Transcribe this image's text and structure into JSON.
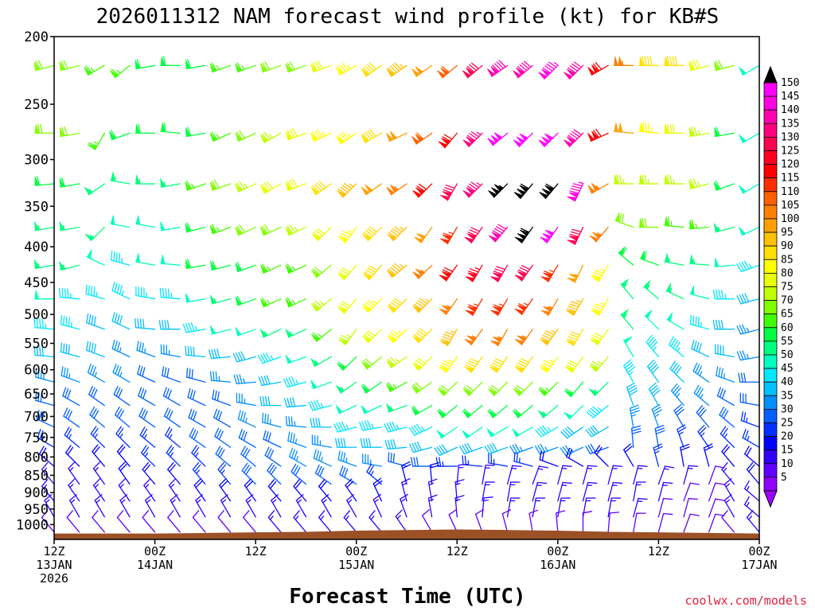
{
  "chart_data": {
    "type": "wind_barb_profile",
    "title": "2026011312 NAM forecast wind profile (kt) for KB#S",
    "xlabel": "Forecast Time (UTC)",
    "ylabel": "",
    "credit": "coolwx.com/models",
    "y_axis": {
      "scale": "log_pressure",
      "range_hpa": [
        1050,
        200
      ],
      "ticks": [
        {
          "value": 200,
          "label": "200"
        },
        {
          "value": 250,
          "label": "250"
        },
        {
          "value": 300,
          "label": "300"
        },
        {
          "value": 350,
          "label": "350"
        },
        {
          "value": 400,
          "label": "400"
        },
        {
          "value": 450,
          "label": "450"
        },
        {
          "value": 500,
          "label": "500"
        },
        {
          "value": 550,
          "label": "550"
        },
        {
          "value": 600,
          "label": "600"
        },
        {
          "value": 650,
          "label": "650"
        },
        {
          "value": 700,
          "label": "700"
        },
        {
          "value": 750,
          "label": "750"
        },
        {
          "value": 800,
          "label": "800"
        },
        {
          "value": 850,
          "label": "850"
        },
        {
          "value": 900,
          "label": "900"
        },
        {
          "value": 950,
          "label": "950"
        },
        {
          "value": 1000,
          "label": "1000"
        }
      ]
    },
    "x_axis": {
      "range_hours": [
        0,
        84
      ],
      "ticks": [
        {
          "hour": 0,
          "line1": "12Z",
          "line2": "13JAN",
          "line3": "2026"
        },
        {
          "hour": 12,
          "line1": "00Z",
          "line2": "14JAN",
          "line3": ""
        },
        {
          "hour": 24,
          "line1": "12Z",
          "line2": "",
          "line3": ""
        },
        {
          "hour": 36,
          "line1": "00Z",
          "line2": "15JAN",
          "line3": ""
        },
        {
          "hour": 48,
          "line1": "12Z",
          "line2": "",
          "line3": ""
        },
        {
          "hour": 60,
          "line1": "00Z",
          "line2": "16JAN",
          "line3": ""
        },
        {
          "hour": 72,
          "line1": "12Z",
          "line2": "",
          "line3": ""
        },
        {
          "hour": 84,
          "line1": "00Z",
          "line2": "17JAN",
          "line3": ""
        }
      ]
    },
    "barb_levels_hpa": [
      220,
      275,
      325,
      375,
      425,
      475,
      525,
      575,
      625,
      675,
      725,
      775,
      825,
      875,
      925,
      975,
      1025
    ],
    "barb_times_hours": [
      0,
      3,
      6,
      9,
      12,
      15,
      18,
      21,
      24,
      27,
      30,
      33,
      36,
      39,
      42,
      45,
      48,
      51,
      54,
      57,
      60,
      63,
      66,
      69,
      72,
      75,
      78,
      81,
      84
    ],
    "wind_direction_deg": [
      [
        255,
        255,
        240,
        230,
        260,
        270,
        260,
        250,
        250,
        250,
        250,
        250,
        240,
        235,
        235,
        235,
        230,
        230,
        235,
        230,
        225,
        225,
        240,
        270,
        270,
        270,
        255,
        255,
        240
      ],
      [
        270,
        260,
        210,
        250,
        270,
        275,
        260,
        245,
        245,
        240,
        250,
        245,
        235,
        240,
        245,
        235,
        220,
        225,
        230,
        225,
        225,
        225,
        245,
        275,
        275,
        270,
        260,
        260,
        240
      ],
      [
        265,
        260,
        235,
        280,
        270,
        260,
        250,
        250,
        245,
        240,
        250,
        235,
        225,
        235,
        235,
        225,
        210,
        225,
        225,
        220,
        220,
        205,
        240,
        270,
        270,
        270,
        255,
        250,
        240
      ],
      [
        260,
        260,
        225,
        280,
        280,
        260,
        255,
        250,
        245,
        245,
        245,
        225,
        215,
        225,
        225,
        215,
        210,
        215,
        220,
        215,
        215,
        205,
        220,
        290,
        270,
        275,
        265,
        255,
        245
      ],
      [
        260,
        255,
        295,
        285,
        280,
        275,
        260,
        255,
        250,
        245,
        245,
        230,
        220,
        220,
        230,
        225,
        215,
        210,
        210,
        215,
        210,
        205,
        210,
        310,
        290,
        280,
        275,
        265,
        250
      ],
      [
        270,
        275,
        285,
        295,
        280,
        275,
        260,
        255,
        250,
        245,
        245,
        230,
        220,
        225,
        225,
        225,
        215,
        210,
        210,
        215,
        210,
        210,
        210,
        320,
        310,
        295,
        285,
        270,
        255
      ],
      [
        275,
        285,
        290,
        295,
        275,
        270,
        260,
        255,
        250,
        245,
        245,
        230,
        215,
        225,
        225,
        225,
        210,
        215,
        210,
        215,
        215,
        210,
        215,
        320,
        315,
        300,
        285,
        270,
        255
      ],
      [
        275,
        285,
        290,
        295,
        290,
        280,
        275,
        265,
        255,
        250,
        250,
        240,
        225,
        230,
        235,
        225,
        215,
        215,
        215,
        215,
        215,
        215,
        220,
        330,
        320,
        310,
        295,
        280,
        260
      ],
      [
        285,
        290,
        300,
        300,
        295,
        290,
        285,
        275,
        265,
        260,
        255,
        250,
        235,
        235,
        240,
        235,
        225,
        225,
        225,
        225,
        225,
        220,
        225,
        330,
        325,
        315,
        305,
        290,
        270
      ],
      [
        285,
        300,
        305,
        305,
        300,
        300,
        295,
        290,
        280,
        270,
        265,
        255,
        245,
        245,
        250,
        240,
        230,
        230,
        230,
        230,
        230,
        225,
        230,
        340,
        330,
        320,
        310,
        300,
        280
      ],
      [
        295,
        305,
        310,
        310,
        305,
        305,
        300,
        300,
        295,
        285,
        275,
        270,
        255,
        260,
        255,
        245,
        235,
        235,
        240,
        240,
        240,
        235,
        240,
        350,
        340,
        330,
        320,
        310,
        290
      ],
      [
        300,
        310,
        315,
        315,
        310,
        310,
        305,
        305,
        300,
        295,
        290,
        280,
        270,
        270,
        265,
        255,
        245,
        250,
        250,
        250,
        250,
        245,
        250,
        355,
        350,
        340,
        325,
        315,
        300
      ],
      [
        310,
        315,
        320,
        320,
        315,
        315,
        315,
        310,
        310,
        305,
        300,
        295,
        290,
        280,
        285,
        270,
        270,
        275,
        280,
        285,
        290,
        300,
        315,
        330,
        345,
        350,
        345,
        320,
        310
      ],
      [
        320,
        325,
        325,
        325,
        320,
        320,
        320,
        320,
        315,
        315,
        310,
        305,
        300,
        310,
        345,
        355,
        5,
        10,
        15,
        20,
        15,
        15,
        15,
        15,
        20,
        15,
        20,
        320,
        320
      ],
      [
        320,
        325,
        325,
        325,
        325,
        325,
        325,
        325,
        325,
        320,
        320,
        320,
        325,
        335,
        345,
        350,
        355,
        10,
        10,
        15,
        15,
        15,
        15,
        10,
        15,
        20,
        20,
        330,
        310
      ],
      [
        330,
        330,
        330,
        330,
        330,
        330,
        330,
        330,
        330,
        330,
        330,
        330,
        330,
        335,
        340,
        350,
        355,
        5,
        10,
        10,
        10,
        10,
        10,
        15,
        15,
        15,
        20,
        330,
        310
      ],
      [
        320,
        320,
        320,
        320,
        320,
        320,
        320,
        320,
        320,
        320,
        320,
        320,
        320,
        320,
        325,
        330,
        335,
        340,
        345,
        350,
        355,
        0,
        5,
        10,
        15,
        20,
        20,
        320,
        320
      ]
    ],
    "wind_speed_kt": [
      [
        70,
        70,
        65,
        65,
        60,
        60,
        60,
        65,
        65,
        70,
        70,
        80,
        85,
        90,
        95,
        100,
        110,
        130,
        140,
        140,
        145,
        140,
        120,
        105,
        90,
        90,
        80,
        70,
        50
      ],
      [
        70,
        70,
        65,
        60,
        60,
        60,
        60,
        65,
        70,
        75,
        80,
        85,
        85,
        90,
        100,
        110,
        120,
        135,
        150,
        150,
        150,
        140,
        120,
        100,
        85,
        80,
        75,
        60,
        50
      ],
      [
        60,
        60,
        55,
        55,
        55,
        55,
        65,
        70,
        75,
        80,
        80,
        90,
        95,
        100,
        105,
        120,
        130,
        135,
        155,
        160,
        160,
        145,
        105,
        75,
        75,
        75,
        75,
        60,
        50
      ],
      [
        55,
        55,
        55,
        50,
        50,
        50,
        60,
        65,
        70,
        70,
        75,
        80,
        85,
        90,
        95,
        100,
        115,
        130,
        140,
        160,
        150,
        130,
        105,
        70,
        70,
        65,
        65,
        55,
        50
      ],
      [
        55,
        55,
        50,
        45,
        50,
        50,
        60,
        60,
        60,
        65,
        65,
        70,
        80,
        90,
        95,
        105,
        120,
        125,
        130,
        130,
        115,
        100,
        85,
        60,
        60,
        55,
        55,
        50,
        45
      ],
      [
        50,
        45,
        45,
        45,
        45,
        45,
        50,
        55,
        60,
        65,
        65,
        75,
        80,
        85,
        90,
        95,
        105,
        115,
        115,
        115,
        105,
        95,
        85,
        55,
        55,
        55,
        50,
        45,
        40
      ],
      [
        45,
        45,
        40,
        40,
        40,
        40,
        45,
        50,
        50,
        55,
        55,
        65,
        75,
        80,
        85,
        90,
        95,
        105,
        105,
        105,
        95,
        90,
        80,
        55,
        50,
        50,
        45,
        40,
        35
      ],
      [
        40,
        40,
        40,
        35,
        35,
        35,
        40,
        40,
        40,
        45,
        50,
        55,
        60,
        70,
        75,
        80,
        85,
        90,
        90,
        90,
        85,
        80,
        75,
        50,
        45,
        45,
        40,
        40,
        35
      ],
      [
        35,
        35,
        35,
        35,
        30,
        30,
        30,
        35,
        35,
        40,
        45,
        50,
        55,
        60,
        65,
        70,
        70,
        70,
        70,
        70,
        65,
        60,
        55,
        45,
        40,
        40,
        35,
        35,
        30
      ],
      [
        30,
        30,
        30,
        30,
        30,
        30,
        30,
        30,
        35,
        40,
        40,
        45,
        50,
        50,
        55,
        60,
        60,
        60,
        60,
        60,
        55,
        50,
        45,
        40,
        40,
        35,
        35,
        30,
        30
      ],
      [
        30,
        30,
        30,
        30,
        30,
        30,
        30,
        30,
        35,
        35,
        35,
        40,
        45,
        45,
        45,
        45,
        50,
        50,
        50,
        50,
        45,
        40,
        40,
        35,
        35,
        30,
        30,
        30,
        25
      ],
      [
        25,
        25,
        25,
        25,
        25,
        25,
        30,
        30,
        30,
        30,
        35,
        35,
        40,
        40,
        40,
        40,
        40,
        40,
        40,
        35,
        35,
        35,
        30,
        30,
        30,
        25,
        25,
        25,
        25
      ],
      [
        20,
        20,
        20,
        20,
        25,
        25,
        25,
        30,
        30,
        30,
        35,
        35,
        35,
        35,
        30,
        30,
        25,
        25,
        25,
        25,
        20,
        20,
        20,
        20,
        25,
        20,
        20,
        20,
        20
      ],
      [
        15,
        15,
        15,
        20,
        20,
        20,
        25,
        25,
        30,
        30,
        30,
        30,
        30,
        25,
        20,
        20,
        15,
        15,
        15,
        15,
        15,
        15,
        15,
        15,
        15,
        15,
        10,
        15,
        20
      ],
      [
        15,
        15,
        15,
        15,
        15,
        15,
        20,
        20,
        20,
        20,
        20,
        20,
        20,
        20,
        15,
        15,
        15,
        15,
        15,
        15,
        15,
        15,
        15,
        15,
        15,
        10,
        10,
        15,
        15
      ],
      [
        15,
        15,
        15,
        15,
        15,
        15,
        15,
        15,
        15,
        15,
        15,
        15,
        15,
        15,
        15,
        15,
        15,
        15,
        15,
        15,
        15,
        15,
        15,
        15,
        10,
        10,
        10,
        15,
        15
      ],
      [
        10,
        10,
        10,
        10,
        10,
        10,
        10,
        10,
        10,
        15,
        15,
        15,
        15,
        15,
        15,
        10,
        10,
        10,
        10,
        10,
        10,
        10,
        10,
        10,
        10,
        10,
        10,
        10,
        15
      ]
    ],
    "surface_pressure_hpa": {
      "hours": [
        0,
        6,
        12,
        18,
        24,
        30,
        36,
        42,
        48,
        54,
        60,
        66,
        72,
        78,
        84
      ],
      "values": [
        1030,
        1030,
        1030,
        1028,
        1026,
        1024,
        1020,
        1018,
        1016,
        1018,
        1020,
        1024,
        1026,
        1028,
        1030
      ]
    },
    "colorbar": {
      "labels": [
        "150",
        "145",
        "140",
        "135",
        "130",
        "125",
        "120",
        "115",
        "110",
        "105",
        "100",
        "95",
        "90",
        "85",
        "80",
        "75",
        "70",
        "65",
        "60",
        "55",
        "50",
        "45",
        "40",
        "35",
        "30",
        "25",
        "20",
        "15",
        "10",
        "5"
      ],
      "colors": [
        "#ff00ff",
        "#ff00e0",
        "#ff00b0",
        "#ff0080",
        "#ff0050",
        "#ff0020",
        "#ff0000",
        "#ff3000",
        "#ff6000",
        "#ff8000",
        "#ffa000",
        "#ffc000",
        "#ffe000",
        "#ffff00",
        "#e8ff00",
        "#c0ff00",
        "#80ff00",
        "#40ff00",
        "#00ff40",
        "#00ff80",
        "#00ffc0",
        "#00e8ff",
        "#00c0ff",
        "#0090ff",
        "#0060ff",
        "#0030ff",
        "#0000ff",
        "#3000ff",
        "#6000ff",
        "#9000ff"
      ],
      "over_color": "#000000",
      "under_color": "#a000ff"
    },
    "colors": {
      "ground": "#9c5026",
      "background": "#ffffff",
      "axis": "#000000",
      "credit": "#e0203f"
    }
  }
}
